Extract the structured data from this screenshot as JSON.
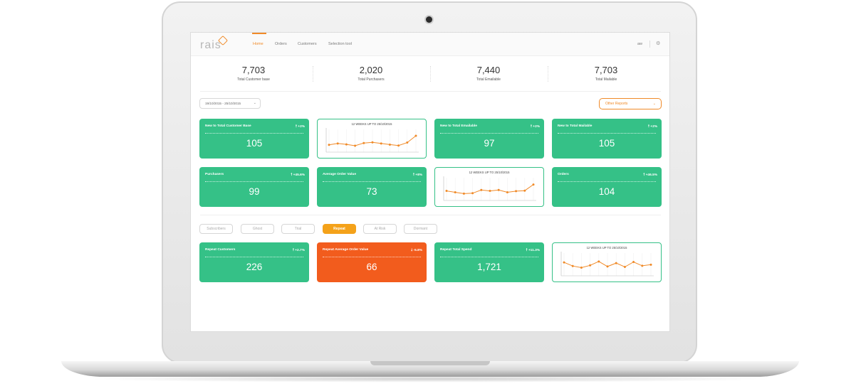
{
  "app": {
    "logo_text": "rais",
    "user_initials": "aw"
  },
  "nav": [
    {
      "label": "Home",
      "active": true
    },
    {
      "label": "Orders",
      "active": false
    },
    {
      "label": "Customers",
      "active": false
    },
    {
      "label": "Selection tool",
      "active": false
    }
  ],
  "stats": [
    {
      "value": "7,703",
      "label": "Total Customer base"
    },
    {
      "value": "2,020",
      "label": "Total Purchasers"
    },
    {
      "value": "7,440",
      "label": "Total Emailable"
    },
    {
      "value": "7,703",
      "label": "Total Mailable"
    }
  ],
  "controls": {
    "date_range": "19/10/2015 - 25/10/2015",
    "reports_select": "Other Reports"
  },
  "cards": [
    {
      "title": "New to Total Customer Base",
      "change": "+2%",
      "direction": "up",
      "value": "105",
      "color": "#35c187"
    },
    {
      "title": "New to Total Emailable",
      "change": "+2%",
      "direction": "up",
      "value": "97",
      "color": "#35c187"
    },
    {
      "title": "New to Total Mailable",
      "change": "+2%",
      "direction": "up",
      "value": "105",
      "color": "#35c187"
    },
    {
      "title": "Purchasers",
      "change": "+45.6%",
      "direction": "up",
      "value": "99",
      "color": "#35c187"
    },
    {
      "title": "Average Order Value",
      "change": "+8%",
      "direction": "up",
      "value": "73",
      "color": "#35c187"
    },
    {
      "title": "Orders",
      "change": "+46.5%",
      "direction": "up",
      "value": "104",
      "color": "#35c187"
    },
    {
      "title": "Repeat Customers",
      "change": "+2.7%",
      "direction": "up",
      "value": "226",
      "color": "#35c187"
    },
    {
      "title": "Repeat Average Order Value",
      "change": "-5.8%",
      "direction": "down",
      "value": "66",
      "color": "#f25c1d"
    },
    {
      "title": "Repeat Total Spend",
      "change": "+11.3%",
      "direction": "up",
      "value": "1,721",
      "color": "#35c187"
    }
  ],
  "filters": [
    {
      "label": "Subscribers",
      "active": false
    },
    {
      "label": "Ghost",
      "active": false
    },
    {
      "label": "Trial",
      "active": false
    },
    {
      "label": "Repeat",
      "active": true
    },
    {
      "label": "At Risk",
      "active": false
    },
    {
      "label": "Dormant",
      "active": false
    }
  ],
  "chart_data": [
    {
      "type": "line",
      "title": "12 WEEKS UP TO 25/10/2015",
      "color": "#f08a28",
      "ylim": [
        0,
        10
      ],
      "x": [
        1,
        2,
        3,
        4,
        5,
        6,
        7,
        8,
        9,
        10,
        11
      ],
      "values": [
        3.2,
        3.8,
        3.4,
        2.8,
        4.0,
        4.3,
        3.8,
        3.3,
        2.9,
        4.2,
        7.2
      ]
    },
    {
      "type": "line",
      "title": "12 WEEKS UP TO 25/10/2015",
      "color": "#f08a28",
      "ylim": [
        0,
        10
      ],
      "x": [
        1,
        2,
        3,
        4,
        5,
        6,
        7,
        8,
        9,
        10,
        11
      ],
      "values": [
        4.2,
        3.6,
        3.0,
        3.2,
        4.6,
        4.2,
        4.6,
        3.6,
        4.1,
        4.3,
        7.0
      ]
    },
    {
      "type": "line",
      "title": "12 WEEKS UP TO 25/10/2015",
      "color": "#f08a28",
      "ylim": [
        0,
        10
      ],
      "x": [
        1,
        2,
        3,
        4,
        5,
        6,
        7,
        8,
        9,
        10,
        11
      ],
      "values": [
        5.9,
        4.3,
        3.6,
        4.6,
        6.3,
        4.1,
        5.6,
        3.9,
        6.1,
        4.4,
        4.9
      ]
    }
  ]
}
